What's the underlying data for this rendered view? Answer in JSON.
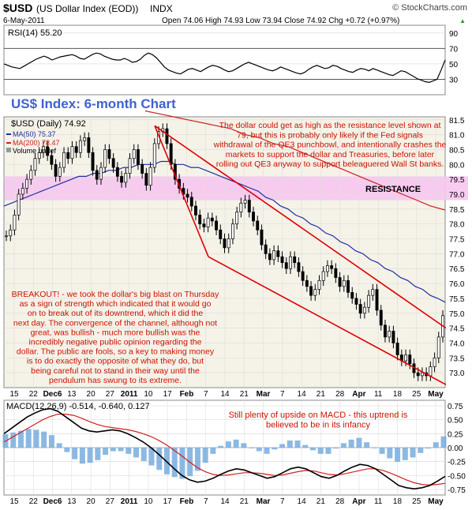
{
  "header": {
    "symbol": "$USD",
    "name": "(US Dollar Index (EOD))",
    "exchange": "INDX",
    "date": "6-May-2011",
    "ohlc": "Open 74.06  High 74.93  Low 73.94  Close 74.92  Chg +0.72 (+0.97%)",
    "ohlc_arrow": "▲",
    "copyright": "© StockCharts.com"
  },
  "colors": {
    "background": "#ffffff",
    "panel_fill": "#f5f2e8",
    "grid": "#dddddd",
    "price": "#000000",
    "ma50": "#2030a0",
    "ma200": "#cc2020",
    "channel": "#dd0000",
    "resistance_band": "#f7c6f0",
    "annotation_red": "#cc1100",
    "title_blue": "#4060d0",
    "macd_hist": "#6fa8dc"
  },
  "chart_data": [
    {
      "type": "line",
      "panel": "rsi",
      "legend": "RSI(14) 55.20",
      "ylim": [
        10,
        100
      ],
      "y_ticks": [
        90,
        70,
        50,
        30
      ],
      "reference_lines": [
        70,
        30
      ],
      "series": [
        {
          "name": "RSI(14)",
          "values": [
            50,
            48,
            46,
            45,
            44,
            47,
            50,
            53,
            56,
            58,
            60,
            58,
            55,
            57,
            59,
            60,
            61,
            62,
            60,
            57,
            56,
            59,
            62,
            64,
            63,
            60,
            58,
            56,
            55,
            55,
            57,
            55,
            52,
            53,
            56,
            61,
            64,
            62,
            58,
            52,
            46,
            42,
            40,
            38,
            37,
            40,
            43,
            44,
            42,
            40,
            43,
            46,
            48,
            47,
            45,
            42,
            40,
            41,
            44,
            47,
            50,
            52,
            50,
            48,
            46,
            44,
            42,
            41,
            43,
            46,
            44,
            42,
            40,
            38,
            37,
            39,
            43,
            46,
            48,
            46,
            44,
            45,
            48,
            47,
            44,
            42,
            40,
            39,
            42,
            44,
            43,
            41,
            44,
            42,
            40,
            38,
            36,
            35,
            38,
            41,
            40,
            37,
            34,
            31,
            29,
            27,
            26,
            28,
            30,
            42,
            55.2
          ]
        }
      ]
    },
    {
      "type": "line",
      "panel": "price",
      "title": "US$ Index: 6-month Chart",
      "legend": [
        "$USD (Daily) 74.92",
        "MA(50) 75.37",
        "MA(200) 78.47",
        "Volume undef"
      ],
      "ylim": [
        72.5,
        81.6
      ],
      "y_ticks": [
        "81.5",
        "81.0",
        "80.5",
        "80.0",
        "79.5",
        "79.0",
        "78.5",
        "78.0",
        "77.5",
        "77.0",
        "76.5",
        "76.0",
        "75.5",
        "75.0",
        "74.5",
        "74.0",
        "73.5",
        "73.0"
      ],
      "x_tick_labels": [
        "15",
        "22",
        "Dec6",
        "13",
        "20",
        "27",
        "2011",
        "10",
        "17",
        "Feb",
        "7",
        "14",
        "21",
        "Mar",
        "7",
        "14",
        "21",
        "28",
        "Apr",
        "11",
        "18",
        "25",
        "May"
      ],
      "series": [
        {
          "name": "$USD (Daily)",
          "values": [
            77.6,
            77.8,
            78.3,
            79.0,
            79.2,
            79.5,
            79.8,
            80.2,
            80.4,
            80.6,
            80.3,
            80.0,
            79.6,
            79.9,
            80.4,
            80.2,
            80.6,
            80.4,
            80.8,
            80.9,
            80.4,
            79.8,
            79.5,
            79.9,
            80.5,
            80.2,
            79.9,
            79.6,
            79.4,
            79.7,
            80.2,
            80.5,
            80.0,
            79.7,
            79.3,
            79.9,
            80.7,
            81.1,
            81.2,
            80.7,
            80.0,
            79.5,
            79.2,
            79.0,
            78.9,
            78.6,
            78.3,
            78.0,
            77.9,
            78.2,
            78.1,
            77.8,
            77.5,
            77.2,
            77.5,
            78.0,
            78.4,
            78.7,
            78.8,
            78.4,
            78.1,
            77.8,
            77.3,
            77.0,
            76.8,
            77.1,
            76.9,
            76.7,
            76.5,
            76.9,
            76.7,
            76.4,
            76.1,
            75.9,
            75.6,
            75.8,
            76.1,
            76.4,
            76.6,
            76.5,
            76.2,
            75.9,
            76.1,
            75.7,
            75.5,
            75.3,
            75.0,
            75.2,
            75.6,
            75.8,
            75.1,
            74.6,
            74.2,
            74.4,
            74.0,
            73.6,
            73.4,
            73.6,
            73.3,
            73.0,
            72.9,
            73.0,
            72.9,
            73.2,
            73.5,
            74.2,
            74.92
          ]
        },
        {
          "name": "MA(50)",
          "values": [
            78.6,
            78.7,
            78.8,
            78.9,
            79.0,
            79.1,
            79.2,
            79.3,
            79.4,
            79.5,
            79.6,
            79.6,
            79.7,
            79.7,
            79.8,
            79.8,
            79.9,
            79.9,
            80.0,
            80.0,
            80.0,
            80.1,
            80.1,
            80.0,
            80.0,
            79.9,
            79.9,
            79.8,
            79.7,
            79.6,
            79.5,
            79.4,
            79.3,
            79.2,
            79.1,
            78.9,
            78.8,
            78.6,
            78.5,
            78.3,
            78.2,
            78.0,
            77.9,
            77.7,
            77.6,
            77.4,
            77.3,
            77.1,
            77.0,
            76.8,
            76.7,
            76.5,
            76.4,
            76.2,
            76.1,
            75.9,
            75.8,
            75.6,
            75.5,
            75.37
          ]
        },
        {
          "name": "MA(200)",
          "values": [
            81.8,
            81.7,
            81.6,
            81.5,
            81.4,
            81.3,
            81.2,
            81.0,
            80.9,
            80.7,
            80.6,
            80.4,
            80.2,
            80.0,
            79.8,
            79.6,
            79.4,
            79.2,
            79.0,
            78.8,
            78.6,
            78.47
          ]
        }
      ],
      "annotations": [
        "The dollar could get as high as the resistance level shown at 79, but this is probably only likely if the Fed signals withdrawal of the QE3 punchbowl, and intentionally crashes the markets to support the dollar and Treasuries, before later rolling out QE3 anyway to support beleaguered Wall St banks.",
        "RESISTANCE",
        "BREAKOUT! - we took the dollar's big blast on Thursday as a sign of strength which indicated that it would go on to break out of its downtrend, which it did the next day. The convergence of the channel, although not great, was bullish - much more bullish was the incredibly negative public opinion regarding the dollar. The public are fools, so a key to making money is to do exactly the opposite of what they do, but being careful not to stand in their way until the pendulum has swung to its extreme."
      ],
      "resistance_band": [
        78.8,
        79.6
      ]
    },
    {
      "type": "line",
      "panel": "macd",
      "legend": "MACD(12,26,9) -0.514, -0.640, 0.127",
      "ylim": [
        -0.85,
        0.85
      ],
      "y_ticks": [
        "0.75",
        "0.50",
        "0.25",
        "0.00",
        "-0.25",
        "-0.50",
        "-0.75"
      ],
      "annotation": "Still plenty of upside on MACD - this uptrend is believed to be in its infancy",
      "series": [
        {
          "name": "MACD",
          "values": [
            0.25,
            0.35,
            0.45,
            0.55,
            0.62,
            0.68,
            0.7,
            0.65,
            0.55,
            0.45,
            0.35,
            0.3,
            0.28,
            0.3,
            0.32,
            0.3,
            0.25,
            0.18,
            0.1,
            0.0,
            -0.12,
            -0.25,
            -0.38,
            -0.5,
            -0.58,
            -0.62,
            -0.6,
            -0.55,
            -0.48,
            -0.42,
            -0.38,
            -0.4,
            -0.45,
            -0.5,
            -0.55,
            -0.52,
            -0.45,
            -0.38,
            -0.35,
            -0.38,
            -0.45,
            -0.52,
            -0.55,
            -0.5,
            -0.42,
            -0.35,
            -0.3,
            -0.32,
            -0.38,
            -0.48,
            -0.58,
            -0.68,
            -0.72,
            -0.74,
            -0.72,
            -0.68,
            -0.6,
            -0.514
          ]
        },
        {
          "name": "Signal",
          "values": [
            0.1,
            0.18,
            0.26,
            0.34,
            0.42,
            0.5,
            0.56,
            0.6,
            0.6,
            0.58,
            0.53,
            0.47,
            0.42,
            0.38,
            0.36,
            0.34,
            0.32,
            0.29,
            0.25,
            0.2,
            0.13,
            0.05,
            -0.05,
            -0.15,
            -0.26,
            -0.36,
            -0.43,
            -0.48,
            -0.5,
            -0.49,
            -0.47,
            -0.45,
            -0.45,
            -0.46,
            -0.48,
            -0.5,
            -0.49,
            -0.46,
            -0.43,
            -0.41,
            -0.42,
            -0.45,
            -0.48,
            -0.49,
            -0.47,
            -0.44,
            -0.41,
            -0.38,
            -0.38,
            -0.41,
            -0.46,
            -0.52,
            -0.58,
            -0.63,
            -0.66,
            -0.67,
            -0.66,
            -0.64
          ]
        }
      ]
    }
  ]
}
